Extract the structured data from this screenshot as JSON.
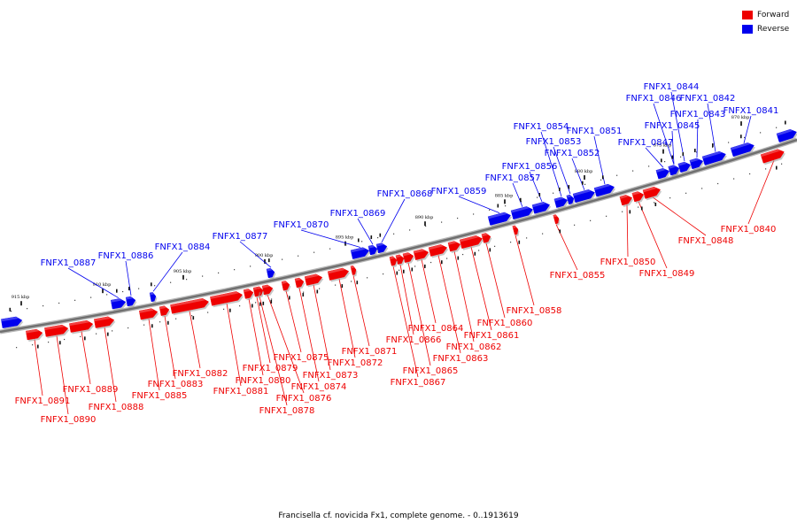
{
  "legend": {
    "forward_label": "Forward",
    "reverse_label": "Reverse",
    "forward_color": "#ee0000",
    "reverse_color": "#0000ee"
  },
  "footer": "Francisella cf. novicida Fx1, complete genome. - 0..1913619",
  "ticks": [
    "870 kbp",
    "875 kbp",
    "880 kbp",
    "885 kbp",
    "890 kbp",
    "895 kbp",
    "900 kbp",
    "905 kbp",
    "910 kbp",
    "915 kbp"
  ],
  "genes": [
    {
      "name": "FNFX1_0840",
      "strand": "forward"
    },
    {
      "name": "FNFX1_0841",
      "strand": "reverse"
    },
    {
      "name": "FNFX1_0842",
      "strand": "reverse"
    },
    {
      "name": "FNFX1_0843",
      "strand": "reverse"
    },
    {
      "name": "FNFX1_0844",
      "strand": "reverse"
    },
    {
      "name": "FNFX1_0845",
      "strand": "reverse"
    },
    {
      "name": "FNFX1_0846",
      "strand": "reverse"
    },
    {
      "name": "FNFX1_0847",
      "strand": "reverse"
    },
    {
      "name": "FNFX1_0848",
      "strand": "forward"
    },
    {
      "name": "FNFX1_0849",
      "strand": "forward"
    },
    {
      "name": "FNFX1_0850",
      "strand": "forward"
    },
    {
      "name": "FNFX1_0851",
      "strand": "reverse"
    },
    {
      "name": "FNFX1_0852",
      "strand": "reverse"
    },
    {
      "name": "FNFX1_0853",
      "strand": "reverse"
    },
    {
      "name": "FNFX1_0854",
      "strand": "reverse"
    },
    {
      "name": "FNFX1_0855",
      "strand": "forward"
    },
    {
      "name": "FNFX1_0856",
      "strand": "reverse"
    },
    {
      "name": "FNFX1_0857",
      "strand": "reverse"
    },
    {
      "name": "FNFX1_0858",
      "strand": "forward"
    },
    {
      "name": "FNFX1_0859",
      "strand": "reverse"
    },
    {
      "name": "FNFX1_0860",
      "strand": "forward"
    },
    {
      "name": "FNFX1_0861",
      "strand": "forward"
    },
    {
      "name": "FNFX1_0862",
      "strand": "forward"
    },
    {
      "name": "FNFX1_0863",
      "strand": "forward"
    },
    {
      "name": "FNFX1_0864",
      "strand": "forward"
    },
    {
      "name": "FNFX1_0865",
      "strand": "forward"
    },
    {
      "name": "FNFX1_0866",
      "strand": "forward"
    },
    {
      "name": "FNFX1_0867",
      "strand": "forward"
    },
    {
      "name": "FNFX1_0868",
      "strand": "reverse"
    },
    {
      "name": "FNFX1_0869",
      "strand": "reverse"
    },
    {
      "name": "FNFX1_0870",
      "strand": "reverse"
    },
    {
      "name": "FNFX1_0871",
      "strand": "forward"
    },
    {
      "name": "FNFX1_0872",
      "strand": "forward"
    },
    {
      "name": "FNFX1_0873",
      "strand": "forward"
    },
    {
      "name": "FNFX1_0874",
      "strand": "forward"
    },
    {
      "name": "FNFX1_0875",
      "strand": "forward"
    },
    {
      "name": "FNFX1_0876",
      "strand": "forward"
    },
    {
      "name": "FNFX1_0877",
      "strand": "reverse"
    },
    {
      "name": "FNFX1_0878",
      "strand": "forward"
    },
    {
      "name": "FNFX1_0879",
      "strand": "forward"
    },
    {
      "name": "FNFX1_0880",
      "strand": "forward"
    },
    {
      "name": "FNFX1_0881",
      "strand": "forward"
    },
    {
      "name": "FNFX1_0882",
      "strand": "forward"
    },
    {
      "name": "FNFX1_0883",
      "strand": "forward"
    },
    {
      "name": "FNFX1_0884",
      "strand": "reverse"
    },
    {
      "name": "FNFX1_0885",
      "strand": "forward"
    },
    {
      "name": "FNFX1_0886",
      "strand": "reverse"
    },
    {
      "name": "FNFX1_0887",
      "strand": "reverse"
    },
    {
      "name": "FNFX1_0888",
      "strand": "forward"
    },
    {
      "name": "FNFX1_0889",
      "strand": "forward"
    },
    {
      "name": "FNFX1_0890",
      "strand": "forward"
    },
    {
      "name": "FNFX1_0891",
      "strand": "forward"
    }
  ]
}
